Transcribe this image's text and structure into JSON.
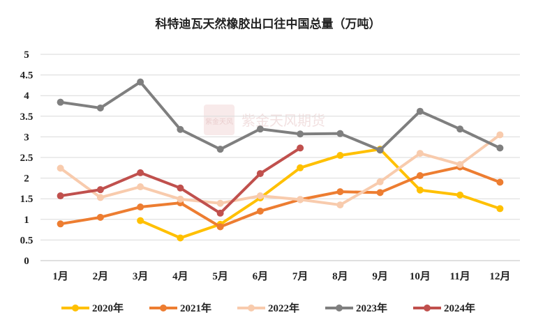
{
  "chart_data": {
    "type": "line",
    "title": "科特迪瓦天然橡胶出口往中国总量（万吨）",
    "xlabel": "",
    "ylabel": "",
    "categories": [
      "1月",
      "2月",
      "3月",
      "4月",
      "5月",
      "6月",
      "7月",
      "8月",
      "9月",
      "10月",
      "11月",
      "12月"
    ],
    "ylim": [
      0,
      5
    ],
    "yticks": [
      "0",
      "0.5",
      "1",
      "1.5",
      "2",
      "2.5",
      "3",
      "3.5",
      "4",
      "4.5",
      "5"
    ],
    "grid": true,
    "legend_position": "bottom",
    "series": [
      {
        "name": "2020年",
        "color": "#ffc000",
        "values": [
          null,
          null,
          0.97,
          0.55,
          0.88,
          1.52,
          2.25,
          2.55,
          2.7,
          1.71,
          1.59,
          1.26
        ]
      },
      {
        "name": "2021年",
        "color": "#ed7d31",
        "values": [
          0.89,
          1.05,
          1.3,
          1.4,
          0.82,
          1.2,
          1.48,
          1.67,
          1.65,
          2.06,
          2.27,
          1.9
        ]
      },
      {
        "name": "2022年",
        "color": "#f8cbad",
        "values": [
          2.24,
          1.53,
          1.79,
          1.49,
          1.39,
          1.57,
          1.48,
          1.35,
          1.91,
          2.6,
          2.33,
          3.05
        ]
      },
      {
        "name": "2023年",
        "color": "#7f7f7f",
        "values": [
          3.84,
          3.7,
          4.33,
          3.18,
          2.7,
          3.19,
          3.07,
          3.08,
          2.68,
          3.62,
          3.19,
          2.73
        ]
      },
      {
        "name": "2024年",
        "color": "#c0504d",
        "values": [
          1.57,
          1.72,
          2.13,
          1.76,
          1.15,
          2.11,
          2.73,
          null,
          null,
          null,
          null,
          null
        ]
      }
    ]
  },
  "watermark": {
    "logo_text": "紫金天风",
    "text": "紫金天风期货"
  }
}
